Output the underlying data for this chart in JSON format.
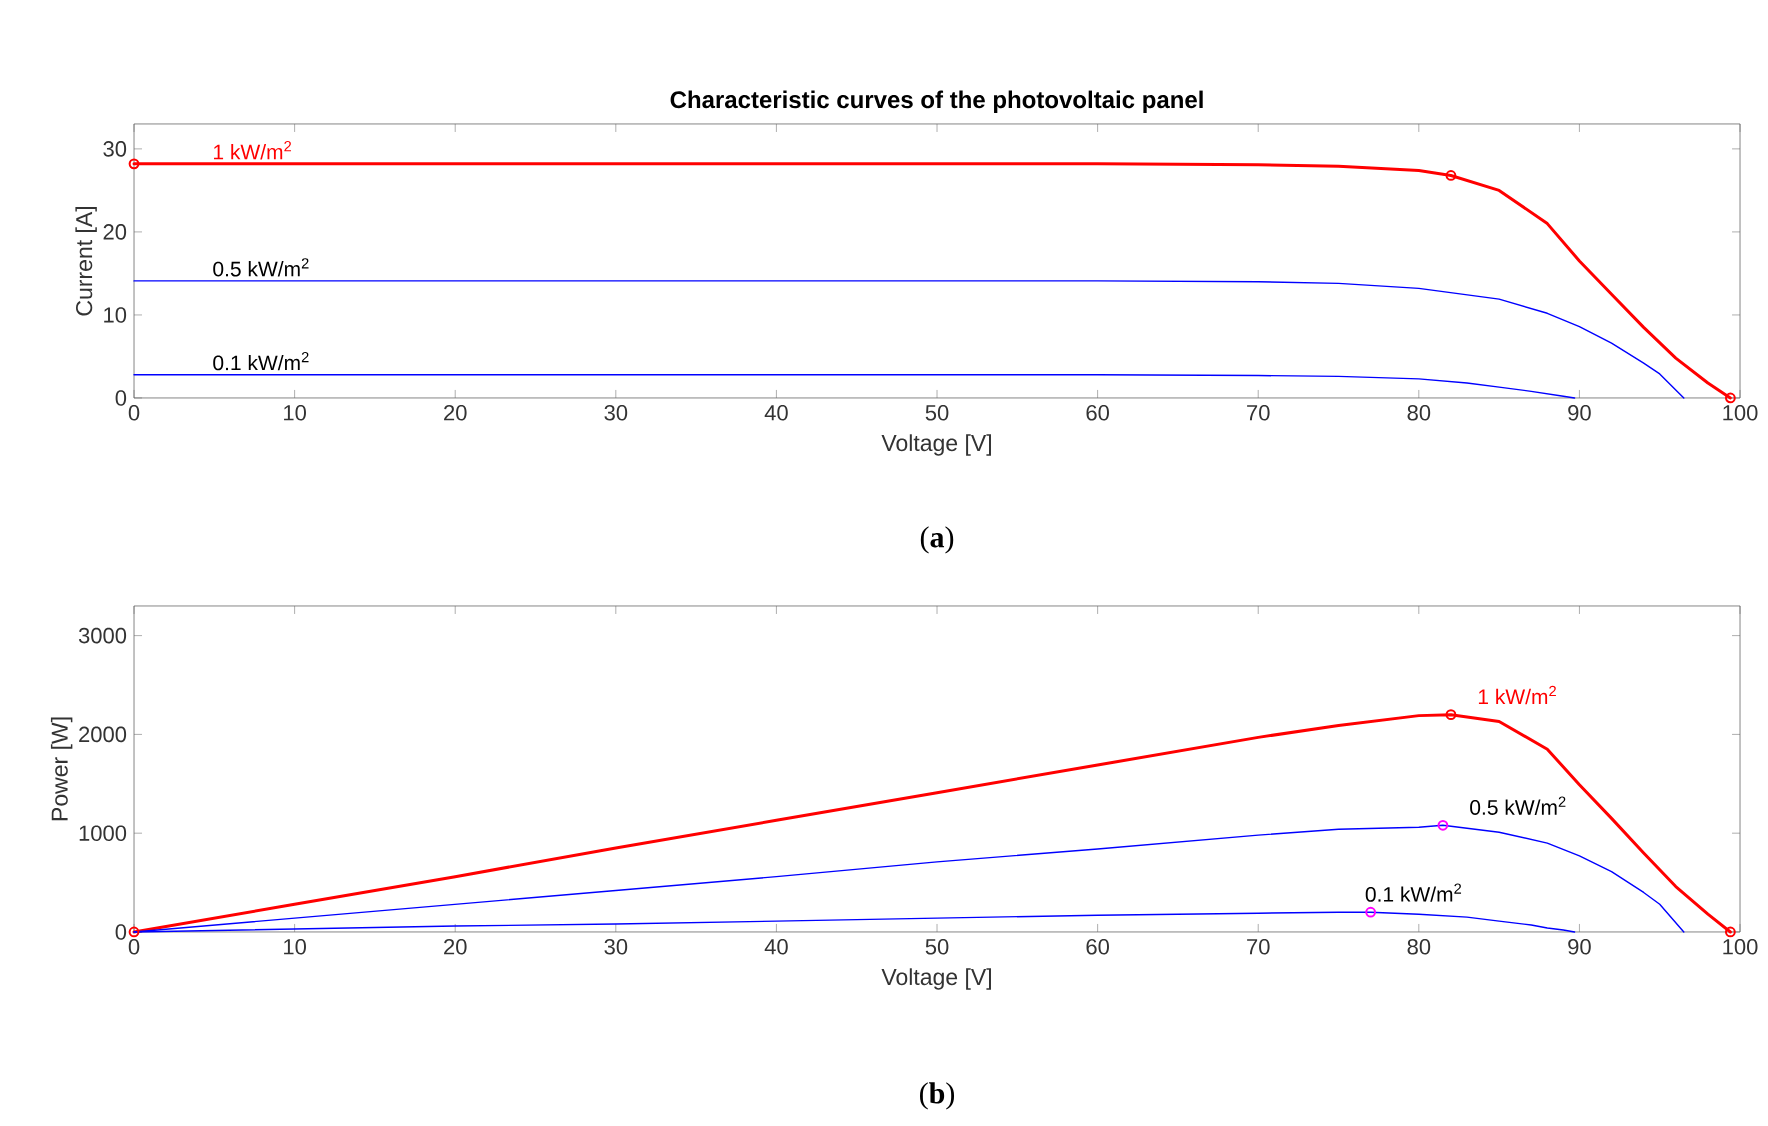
{
  "chart_data": [
    {
      "type": "line",
      "title": "Characteristic curves of the photovoltaic panel",
      "xlabel": "Voltage [V]",
      "ylabel": "Current [A]",
      "xlim": [
        0,
        100
      ],
      "ylim": [
        0,
        33
      ],
      "xticks": [
        0,
        10,
        20,
        30,
        40,
        50,
        60,
        70,
        80,
        90,
        100
      ],
      "yticks": [
        0,
        10,
        20,
        30
      ],
      "marker": "none",
      "line_style": "solid",
      "annotations": [
        "(**a**)"
      ],
      "series": [
        {
          "name": "1 kW/m$^{2}$",
          "color": "#ff0000",
          "x": [
            0,
            10,
            20,
            30,
            40,
            50,
            60,
            70,
            75,
            80,
            82,
            85,
            88,
            90,
            92,
            94,
            96,
            98,
            99.4
          ],
          "values": [
            28.2,
            28.2,
            28.2,
            28.2,
            28.2,
            28.2,
            28.2,
            28.1,
            27.9,
            27.4,
            26.8,
            25,
            21,
            16.5,
            12.5,
            8.5,
            4.8,
            1.8,
            0
          ]
        },
        {
          "name": "0.5 kW/m$^{2}$",
          "color": "#0000ff",
          "x": [
            0,
            10,
            20,
            30,
            40,
            50,
            60,
            70,
            75,
            80,
            85,
            88,
            90,
            92,
            94,
            95,
            96.5
          ],
          "values": [
            14.1,
            14.1,
            14.1,
            14.1,
            14.1,
            14.1,
            14.1,
            14.0,
            13.8,
            13.2,
            11.9,
            10.2,
            8.6,
            6.6,
            4.2,
            2.9,
            0
          ]
        },
        {
          "name": "0.1 kW/m$^{2}$",
          "color": "#0000ff",
          "x": [
            0,
            10,
            20,
            30,
            40,
            50,
            60,
            70,
            75,
            80,
            83,
            85,
            87,
            88,
            89,
            89.7
          ],
          "values": [
            2.8,
            2.8,
            2.8,
            2.8,
            2.8,
            2.8,
            2.8,
            2.7,
            2.6,
            2.3,
            1.8,
            1.3,
            0.8,
            0.5,
            0.2,
            0
          ]
        },
        {
          "type": "scatter",
          "marker": "circle",
          "color": "#ff0000",
          "x": [
            0,
            82,
            99.4
          ],
          "values": [
            28.2,
            26.8,
            0
          ]
        }
      ]
    },
    {
      "type": "line",
      "xlabel": "Voltage [V]",
      "ylabel": "Power [W]",
      "xlim": [
        0,
        100
      ],
      "ylim": [
        0,
        3300
      ],
      "xticks": [
        0,
        10,
        20,
        30,
        40,
        50,
        60,
        70,
        80,
        90,
        100
      ],
      "yticks": [
        0,
        1000,
        2000,
        3000
      ],
      "marker": "none",
      "line_style": "solid",
      "annotations": [
        "(**b**)"
      ],
      "series": [
        {
          "name": "1 kW/m$^{2}$",
          "color": "#ff0000",
          "x": [
            0,
            10,
            20,
            30,
            40,
            50,
            60,
            70,
            75,
            80,
            82,
            85,
            88,
            90,
            92,
            94,
            96,
            98,
            99.4
          ],
          "values": [
            0,
            280,
            560,
            850,
            1130,
            1410,
            1690,
            1970,
            2090,
            2190,
            2200,
            2130,
            1850,
            1490,
            1150,
            800,
            460,
            180,
            0
          ]
        },
        {
          "name": "0.5 kW/m$^{2}$",
          "color": "#0000ff",
          "x": [
            0,
            10,
            20,
            30,
            40,
            50,
            60,
            70,
            75,
            80,
            81.5,
            85,
            88,
            90,
            92,
            94,
            95,
            96.5
          ],
          "values": [
            0,
            140,
            280,
            420,
            560,
            710,
            840,
            980,
            1040,
            1060,
            1080,
            1010,
            900,
            770,
            610,
            400,
            280,
            0
          ]
        },
        {
          "name": "0.1 kW/m$^{2}$",
          "color": "#0000ff",
          "x": [
            0,
            10,
            20,
            30,
            40,
            50,
            60,
            70,
            75,
            77,
            80,
            83,
            85,
            87,
            88,
            89,
            89.7
          ],
          "values": [
            0,
            30,
            60,
            80,
            110,
            140,
            170,
            190,
            200,
            200,
            180,
            150,
            110,
            70,
            40,
            20,
            0
          ]
        },
        {
          "type": "scatter",
          "marker": "circle",
          "color": "#ff0000",
          "x": [
            0,
            82,
            99.4
          ],
          "values": [
            0,
            2200,
            0
          ]
        },
        {
          "type": "scatter",
          "marker": "circle",
          "color": "#ff00ff",
          "x": [
            81.5,
            77
          ],
          "values": [
            1080,
            200
          ]
        }
      ]
    }
  ]
}
